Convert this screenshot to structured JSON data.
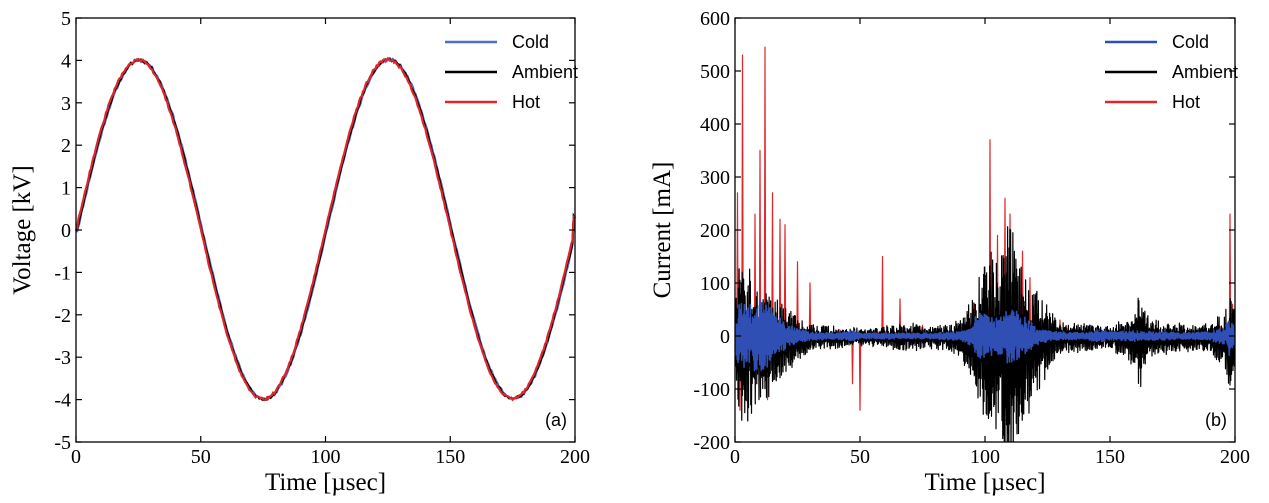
{
  "chart_data": [
    {
      "type": "line",
      "panel_label": "(a)",
      "xlabel": "Time [µsec]",
      "ylabel": "Voltage [kV]",
      "xlim": [
        0,
        200
      ],
      "ylim": [
        -5,
        5
      ],
      "xticks": [
        "0",
        "50",
        "100",
        "150",
        "200"
      ],
      "yticks": [
        "-5",
        "-4",
        "-3",
        "-2",
        "-1",
        "0",
        "1",
        "2",
        "3",
        "4",
        "5"
      ],
      "legend_position": "top-right",
      "grid": false,
      "waveform": {
        "amplitude": 4.0,
        "period_usec": 100,
        "start_value": 0.0,
        "end_value": 0.3,
        "peak_times_usec": [
          23,
          122
        ],
        "trough_times_usec": [
          73,
          172
        ]
      },
      "series": [
        {
          "name": "Cold",
          "color": "#4a6fc4",
          "phase_shift_usec": 0.6
        },
        {
          "name": "Ambient",
          "color": "#000000",
          "phase_shift_usec": 0.3
        },
        {
          "name": "Hot",
          "color": "#e0262b",
          "phase_shift_usec": 0.0
        }
      ]
    },
    {
      "type": "line",
      "panel_label": "(b)",
      "xlabel": "Time [µsec]",
      "ylabel": "Current [mA]",
      "xlim": [
        0,
        200
      ],
      "ylim": [
        -200,
        600
      ],
      "xticks": [
        "0",
        "50",
        "100",
        "150",
        "200"
      ],
      "yticks": [
        "-200",
        "-100",
        "0",
        "100",
        "200",
        "300",
        "400",
        "500",
        "600"
      ],
      "legend_position": "top-right",
      "grid": false,
      "series": [
        {
          "name": "Cold",
          "color": "#2f4fb5",
          "envelope": [
            [
              0,
              30
            ],
            [
              2,
              70
            ],
            [
              5,
              60
            ],
            [
              10,
              70
            ],
            [
              15,
              50
            ],
            [
              20,
              25
            ],
            [
              25,
              15
            ],
            [
              30,
              8
            ],
            [
              40,
              6
            ],
            [
              48,
              10
            ],
            [
              50,
              5
            ],
            [
              60,
              6
            ],
            [
              70,
              5
            ],
            [
              80,
              6
            ],
            [
              90,
              8
            ],
            [
              95,
              20
            ],
            [
              97,
              50
            ],
            [
              100,
              40
            ],
            [
              105,
              35
            ],
            [
              110,
              55
            ],
            [
              115,
              40
            ],
            [
              120,
              20
            ],
            [
              125,
              10
            ],
            [
              130,
              8
            ],
            [
              140,
              6
            ],
            [
              145,
              12
            ],
            [
              150,
              8
            ],
            [
              160,
              10
            ],
            [
              170,
              8
            ],
            [
              180,
              6
            ],
            [
              190,
              8
            ],
            [
              196,
              20
            ],
            [
              198,
              40
            ],
            [
              200,
              15
            ]
          ]
        },
        {
          "name": "Ambient",
          "color": "#000000",
          "envelope": [
            [
              0,
              60
            ],
            [
              2,
              160
            ],
            [
              5,
              140
            ],
            [
              10,
              100
            ],
            [
              15,
              90
            ],
            [
              20,
              60
            ],
            [
              25,
              40
            ],
            [
              30,
              25
            ],
            [
              40,
              20
            ],
            [
              50,
              15
            ],
            [
              60,
              20
            ],
            [
              70,
              25
            ],
            [
              80,
              20
            ],
            [
              90,
              30
            ],
            [
              95,
              80
            ],
            [
              100,
              140
            ],
            [
              103,
              180
            ],
            [
              106,
              120
            ],
            [
              109,
              285
            ],
            [
              112,
              200
            ],
            [
              115,
              150
            ],
            [
              120,
              100
            ],
            [
              125,
              60
            ],
            [
              130,
              30
            ],
            [
              140,
              25
            ],
            [
              150,
              20
            ],
            [
              160,
              50
            ],
            [
              162,
              100
            ],
            [
              165,
              40
            ],
            [
              170,
              30
            ],
            [
              180,
              25
            ],
            [
              190,
              25
            ],
            [
              196,
              60
            ],
            [
              199,
              95
            ],
            [
              200,
              40
            ]
          ]
        },
        {
          "name": "Hot",
          "color": "#e0262b",
          "spikes": [
            [
              1,
              270
            ],
            [
              2,
              -140
            ],
            [
              3,
              530
            ],
            [
              5,
              80
            ],
            [
              8,
              230
            ],
            [
              10,
              350
            ],
            [
              12,
              545
            ],
            [
              13,
              -120
            ],
            [
              15,
              270
            ],
            [
              18,
              220
            ],
            [
              20,
              210
            ],
            [
              25,
              140
            ],
            [
              30,
              100
            ],
            [
              47,
              -90
            ],
            [
              50,
              -140
            ],
            [
              59,
              150
            ],
            [
              66,
              70
            ],
            [
              75,
              20
            ],
            [
              90,
              15
            ],
            [
              96,
              60
            ],
            [
              100,
              130
            ],
            [
              102,
              370
            ],
            [
              105,
              190
            ],
            [
              108,
              260
            ],
            [
              110,
              230
            ],
            [
              115,
              160
            ],
            [
              118,
              110
            ],
            [
              120,
              -60
            ],
            [
              123,
              -40
            ],
            [
              130,
              30
            ],
            [
              165,
              15
            ],
            [
              198,
              230
            ],
            [
              199,
              60
            ]
          ]
        }
      ]
    }
  ]
}
